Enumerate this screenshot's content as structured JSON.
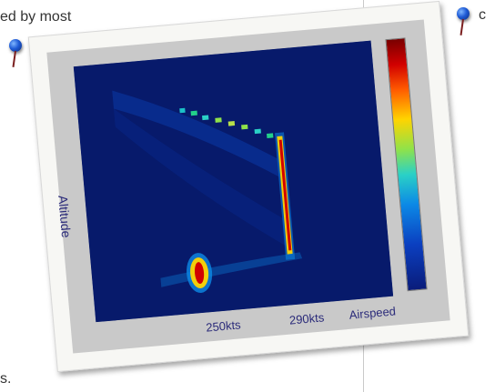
{
  "page_text": {
    "top_line": "ed by most",
    "bottom_line": "s.",
    "right_fragment": "c"
  },
  "figure": {
    "y_axis_label": "Altitude",
    "x_ticks": [
      "250kts",
      "290kts"
    ],
    "x_axis_label": "Airspeed"
  },
  "colors": {
    "page_bg": "#ffffff",
    "plot_bg": "#071a6b",
    "label_color": "#2b2b7a"
  }
}
